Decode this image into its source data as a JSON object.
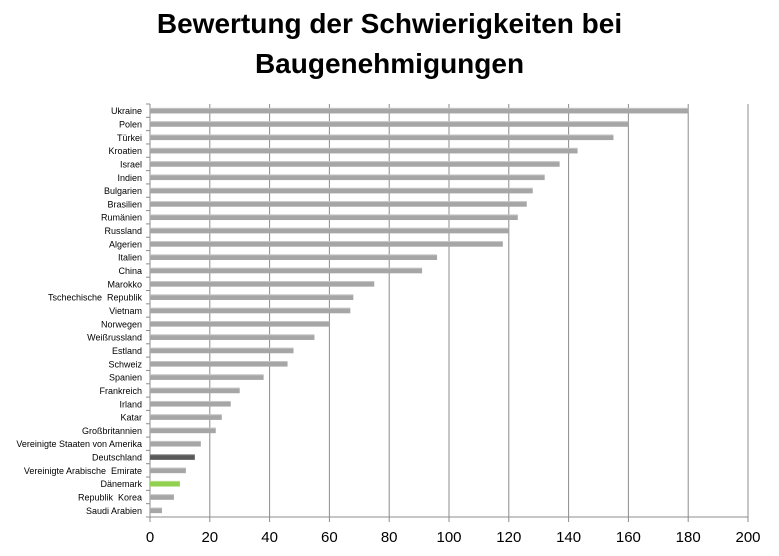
{
  "chart_data": {
    "type": "bar",
    "orientation": "horizontal",
    "title_lines": [
      "Bewertung der Schwierigkeiten bei",
      "Baugenehmigungen"
    ],
    "categories": [
      "Ukraine",
      "Polen",
      "Türkei",
      "Kroatien",
      "Israel",
      "Indien",
      "Bulgarien",
      "Brasilien",
      "Rumänien",
      "Russland",
      "Algerien",
      "Italien",
      "China",
      "Marokko",
      "Tschechische  Republik",
      "Vietnam",
      "Norwegen",
      "Weißrussland",
      "Estland",
      "Schweiz",
      "Spanien",
      "Frankreich",
      "Irland",
      "Katar",
      "Großbritannien",
      "Vereinigte Staaten von Amerika",
      "Deutschland",
      "Vereinigte Arabische  Emirate",
      "Dänemark",
      "Republik  Korea",
      "Saudi Arabien"
    ],
    "values": [
      180,
      160,
      155,
      143,
      137,
      132,
      128,
      126,
      123,
      120,
      118,
      96,
      91,
      75,
      68,
      67,
      60,
      55,
      48,
      46,
      38,
      30,
      27,
      24,
      22,
      17,
      15,
      12,
      10,
      8,
      4
    ],
    "bar_colors": {
      "default": "#a6a6a6",
      "Deutschland": "#595959",
      "Dänemark": "#92d050"
    },
    "xlim": [
      0,
      200
    ],
    "xticks": [
      0,
      20,
      40,
      60,
      80,
      100,
      120,
      140,
      160,
      180,
      200
    ],
    "grid": true,
    "legend": "none"
  }
}
